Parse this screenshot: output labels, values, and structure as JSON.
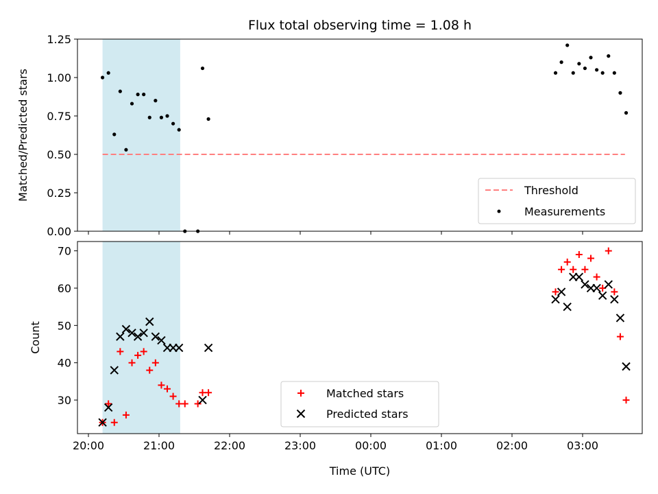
{
  "chart_data": [
    {
      "type": "scatter",
      "title": "Flux total observing time = 1.08 h",
      "xlabel": "",
      "ylabel": "Matched/Predicted stars",
      "ylim": [
        0,
        1.25
      ],
      "xlim": [
        "20:00",
        "04:00"
      ],
      "yticks": [
        "0.00",
        "0.25",
        "0.50",
        "0.75",
        "1.00",
        "1.25"
      ],
      "grid": false,
      "legend_position": "lower right",
      "shaded_interval": [
        "20:12",
        "21:18"
      ],
      "threshold": {
        "name": "Threshold",
        "value": 0.5,
        "color": "#ff7f7f",
        "style": "dashed",
        "x": [
          "20:12",
          "03:36"
        ]
      },
      "series": [
        {
          "name": "Measurements",
          "color": "#000000",
          "marker": "dot",
          "x": [
            "20:12",
            "20:17",
            "20:22",
            "20:27",
            "20:32",
            "20:37",
            "20:42",
            "20:47",
            "20:52",
            "20:57",
            "21:02",
            "21:07",
            "21:12",
            "21:17",
            "21:22",
            "21:33",
            "21:37",
            "21:42",
            "02:37",
            "02:42",
            "02:47",
            "02:52",
            "02:57",
            "03:02",
            "03:07",
            "03:12",
            "03:17",
            "03:22",
            "03:27",
            "03:32",
            "03:37"
          ],
          "y": [
            1.0,
            1.03,
            0.63,
            0.91,
            0.53,
            0.83,
            0.89,
            0.89,
            0.74,
            0.85,
            0.74,
            0.75,
            0.7,
            0.66,
            0.0,
            0.0,
            1.06,
            0.73,
            1.03,
            1.1,
            1.21,
            1.03,
            1.09,
            1.06,
            1.13,
            1.05,
            1.03,
            1.14,
            1.03,
            0.9,
            0.77
          ]
        }
      ]
    },
    {
      "type": "scatter",
      "title": "",
      "xlabel": "Time (UTC)",
      "ylabel": "Count",
      "ylim": [
        21,
        72.5
      ],
      "xlim": [
        "20:00",
        "04:00"
      ],
      "yticks": [
        "30",
        "40",
        "50",
        "60",
        "70"
      ],
      "xticks": [
        "20:00",
        "21:00",
        "22:00",
        "23:00",
        "00:00",
        "01:00",
        "02:00",
        "03:00"
      ],
      "grid": false,
      "legend_position": "lower center",
      "shaded_interval": [
        "20:12",
        "21:18"
      ],
      "series": [
        {
          "name": "Matched stars",
          "color": "#ff0000",
          "marker": "plus",
          "x": [
            "20:12",
            "20:17",
            "20:22",
            "20:27",
            "20:32",
            "20:37",
            "20:42",
            "20:47",
            "20:52",
            "20:57",
            "21:02",
            "21:07",
            "21:12",
            "21:17",
            "21:22",
            "21:33",
            "21:37",
            "21:42",
            "02:37",
            "02:42",
            "02:47",
            "02:52",
            "02:57",
            "03:02",
            "03:07",
            "03:12",
            "03:17",
            "03:22",
            "03:27",
            "03:32",
            "03:37"
          ],
          "y": [
            24,
            29,
            24,
            43,
            26,
            40,
            42,
            43,
            38,
            40,
            34,
            33,
            31,
            29,
            29,
            29,
            32,
            32,
            59,
            65,
            67,
            65,
            69,
            65,
            68,
            63,
            60,
            70,
            59,
            47,
            30
          ]
        },
        {
          "name": "Predicted stars",
          "color": "#000000",
          "marker": "x",
          "x": [
            "20:12",
            "20:17",
            "20:22",
            "20:27",
            "20:32",
            "20:37",
            "20:42",
            "20:47",
            "20:52",
            "20:57",
            "21:02",
            "21:07",
            "21:12",
            "21:17",
            "21:37",
            "21:42",
            "02:37",
            "02:42",
            "02:47",
            "02:52",
            "02:57",
            "03:02",
            "03:07",
            "03:12",
            "03:17",
            "03:22",
            "03:27",
            "03:32",
            "03:37"
          ],
          "y": [
            24,
            28,
            38,
            47,
            49,
            48,
            47,
            48,
            51,
            47,
            46,
            44,
            44,
            44,
            30,
            44,
            57,
            59,
            55,
            63,
            63,
            61,
            60,
            60,
            58,
            61,
            57,
            52,
            39
          ]
        }
      ]
    }
  ]
}
